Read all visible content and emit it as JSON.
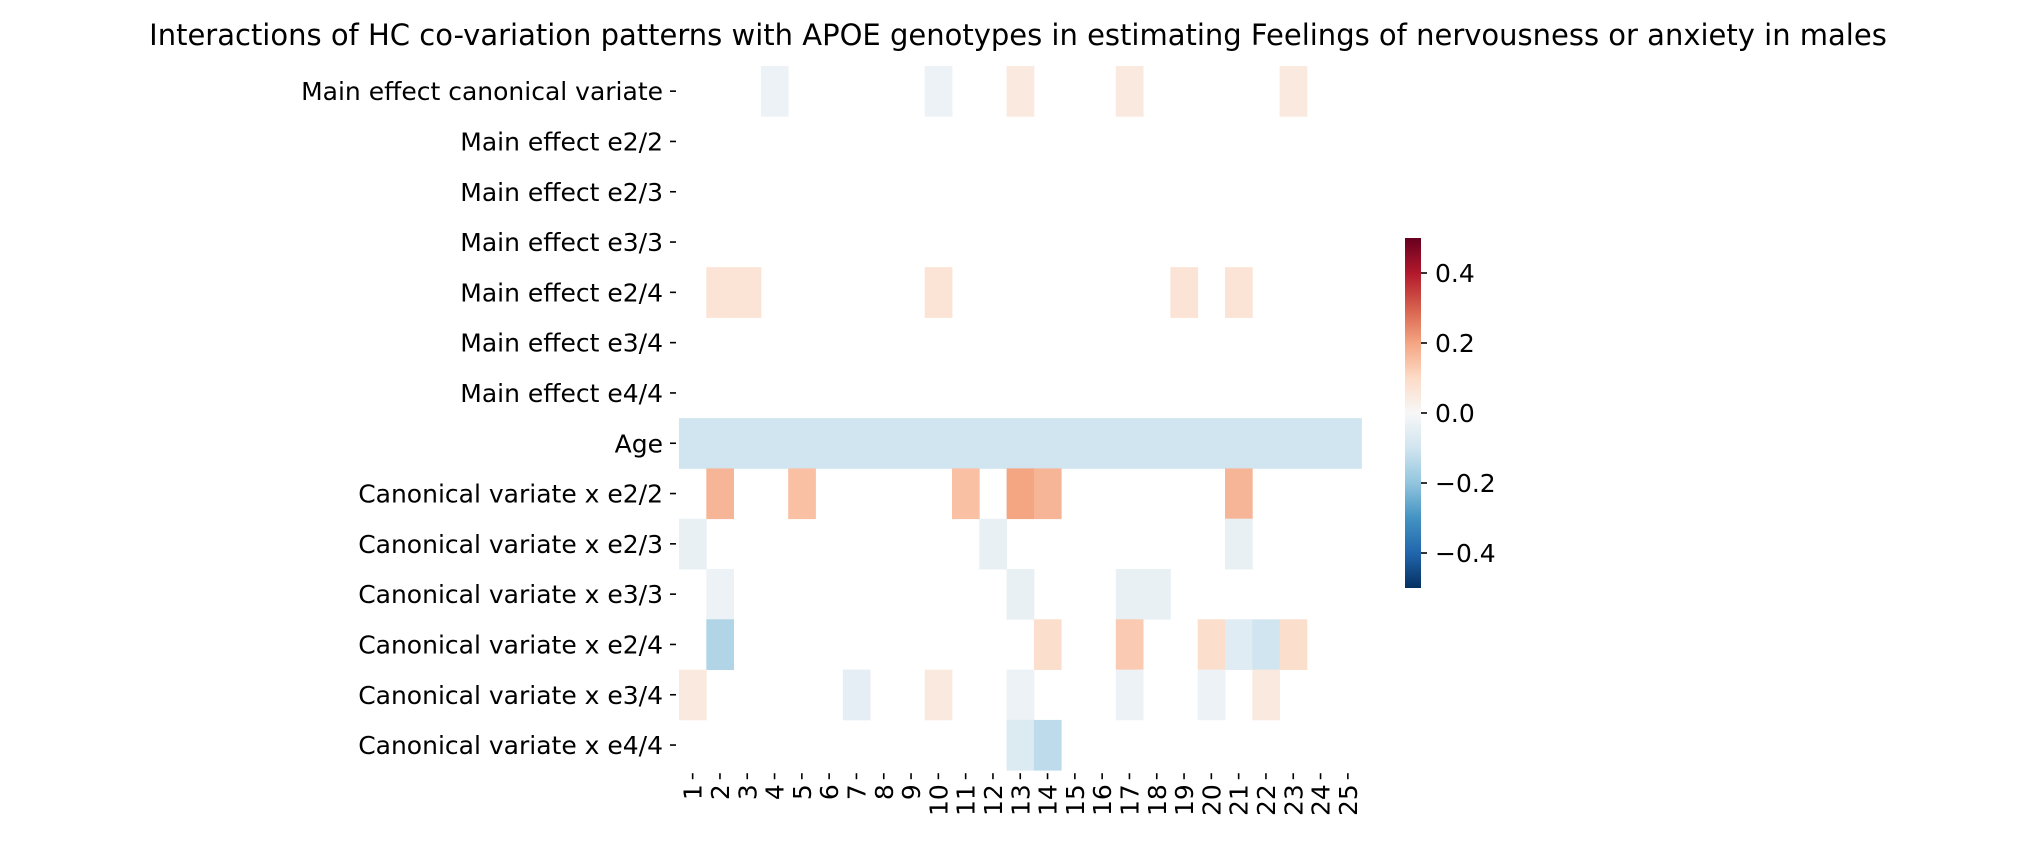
{
  "chart_data": {
    "type": "heatmap",
    "title": "Interactions of HC co-variation patterns with APOE genotypes in estimating Feelings of nervousness or anxiety in males",
    "xlabel": "",
    "ylabel": "",
    "x_categories": [
      "1",
      "2",
      "3",
      "4",
      "5",
      "6",
      "7",
      "8",
      "9",
      "10",
      "11",
      "12",
      "13",
      "14",
      "15",
      "16",
      "17",
      "18",
      "19",
      "20",
      "21",
      "22",
      "23",
      "24",
      "25"
    ],
    "y_categories": [
      "Main effect canonical variate",
      "Main effect e2/2",
      "Main effect e2/3",
      "Main effect e3/3",
      "Main effect e2/4",
      "Main effect e3/4",
      "Main effect e4/4",
      "Age",
      "Canonical variate x e2/2",
      "Canonical variate x e2/3",
      "Canonical variate x e3/3",
      "Canonical variate x e2/4",
      "Canonical variate x e3/4",
      "Canonical variate x e4/4"
    ],
    "values": [
      [
        0,
        0,
        0,
        -0.03,
        0,
        0,
        0,
        0,
        0,
        -0.03,
        0,
        0,
        0.05,
        0,
        0,
        0,
        0.05,
        0,
        0,
        0,
        0,
        0,
        0.05,
        0,
        0
      ],
      [
        0,
        0,
        0,
        0,
        0,
        0,
        0,
        0,
        0,
        0,
        0,
        0,
        0,
        0,
        0,
        0,
        0,
        0,
        0,
        0,
        0,
        0,
        0,
        0,
        0
      ],
      [
        0,
        0,
        0,
        0,
        0,
        0,
        0,
        0,
        0,
        0,
        0,
        0,
        0,
        0,
        0,
        0,
        0,
        0,
        0,
        0,
        0,
        0,
        0,
        0,
        0
      ],
      [
        0,
        0,
        0,
        0,
        0,
        0,
        0,
        0,
        0,
        0,
        0,
        0,
        0,
        0,
        0,
        0,
        0,
        0,
        0,
        0,
        0,
        0,
        0,
        0,
        0
      ],
      [
        0,
        0.07,
        0.07,
        0,
        0,
        0,
        0,
        0,
        0,
        0.07,
        0,
        0,
        0,
        0,
        0,
        0,
        0,
        0,
        0.07,
        0,
        0.07,
        0,
        0,
        0,
        0
      ],
      [
        0,
        0,
        0,
        0,
        0,
        0,
        0,
        0,
        0,
        0,
        0,
        0,
        0,
        0,
        0,
        0,
        0,
        0,
        0,
        0,
        0,
        0,
        0,
        0,
        0
      ],
      [
        0,
        0,
        0,
        0,
        0,
        0,
        0,
        0,
        0,
        0,
        0,
        0,
        0,
        0,
        0,
        0,
        0,
        0,
        0,
        0,
        0,
        0,
        0,
        0,
        0
      ],
      [
        -0.1,
        -0.1,
        -0.1,
        -0.1,
        -0.1,
        -0.1,
        -0.1,
        -0.1,
        -0.1,
        -0.1,
        -0.1,
        -0.1,
        -0.1,
        -0.1,
        -0.1,
        -0.1,
        -0.1,
        -0.1,
        -0.1,
        -0.1,
        -0.1,
        -0.1,
        -0.1,
        -0.1,
        -0.1
      ],
      [
        0,
        0.17,
        0,
        0,
        0.15,
        0,
        0,
        0,
        0,
        0,
        0.15,
        0,
        0.2,
        0.17,
        0,
        0,
        0,
        0,
        0,
        0,
        0.17,
        0,
        0,
        0,
        0
      ],
      [
        -0.04,
        0,
        0,
        0,
        0,
        0,
        0,
        0,
        0,
        0,
        0,
        -0.04,
        0,
        0,
        0,
        0,
        0,
        0,
        0,
        0,
        -0.04,
        0,
        0,
        0,
        0
      ],
      [
        0,
        -0.03,
        0,
        0,
        0,
        0,
        0,
        0,
        0,
        0,
        0,
        0,
        -0.04,
        0,
        0,
        0,
        -0.04,
        -0.04,
        0,
        0,
        0,
        0,
        0,
        0,
        0
      ],
      [
        0,
        -0.15,
        0,
        0,
        0,
        0,
        0,
        0,
        0,
        0,
        0,
        0,
        0,
        0.09,
        0,
        0,
        0.13,
        0,
        0,
        0.09,
        -0.06,
        -0.1,
        0.09,
        0,
        0
      ],
      [
        0.05,
        0,
        0,
        0,
        0,
        0,
        -0.05,
        0,
        0,
        0.05,
        0,
        0,
        -0.03,
        0,
        0,
        0,
        -0.03,
        0,
        0,
        -0.03,
        0,
        0.05,
        0,
        0,
        0
      ],
      [
        0,
        0,
        0,
        0,
        0,
        0,
        0,
        0,
        0,
        0,
        0,
        0,
        -0.07,
        -0.13,
        0,
        0,
        0,
        0,
        0,
        0,
        0,
        0,
        0,
        0,
        0
      ]
    ],
    "colormap": "RdBu_r",
    "vmin": -0.5,
    "vmax": 0.5,
    "colorbar_ticks": [
      0.4,
      0.2,
      0.0,
      -0.2,
      -0.4
    ],
    "colorbar_tick_labels": [
      "0.4",
      "0.2",
      "0.0",
      "−0.2",
      "−0.4"
    ]
  }
}
